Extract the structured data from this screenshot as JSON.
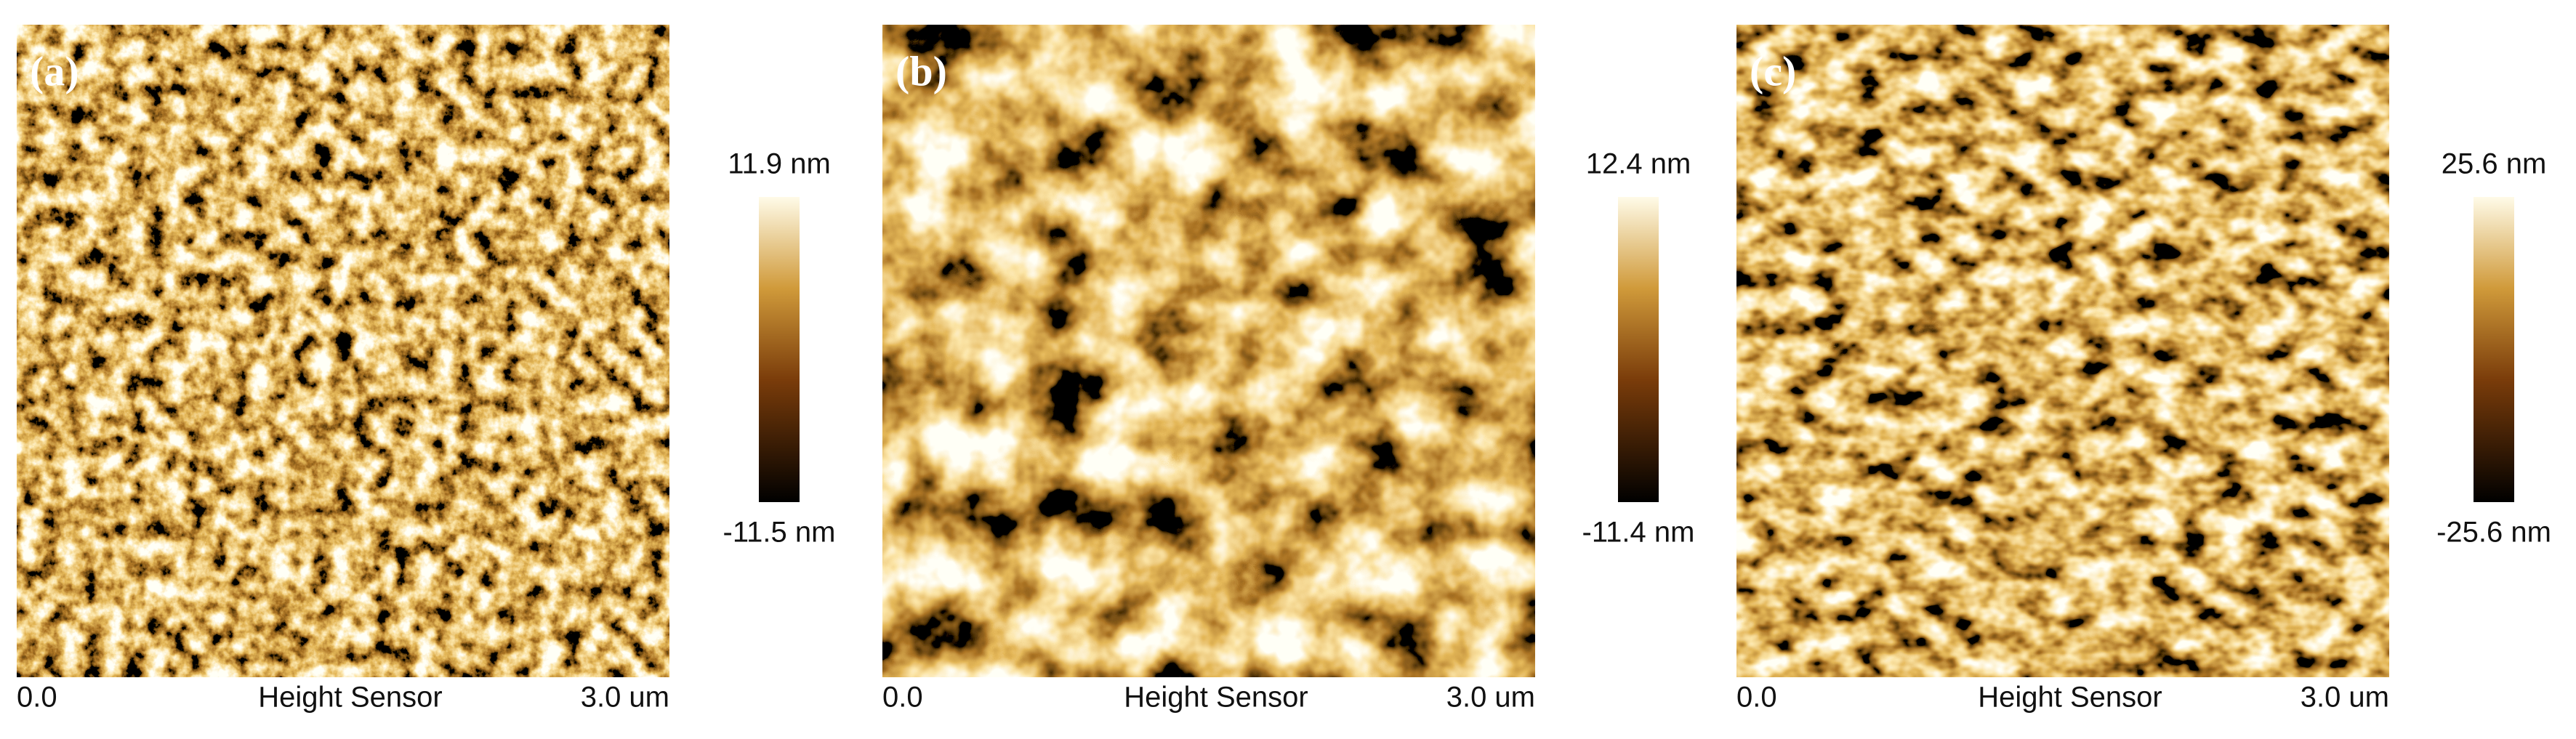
{
  "panels": [
    {
      "label": "(a)",
      "scale_max": "11.9 nm",
      "scale_min": "-11.5 nm",
      "x_start": "0.0",
      "x_title": "Height Sensor",
      "x_end": "3.0 um"
    },
    {
      "label": "(b)",
      "scale_max": "12.4 nm",
      "scale_min": "-11.4 nm",
      "x_start": "0.0",
      "x_title": "Height Sensor",
      "x_end": "3.0 um"
    },
    {
      "label": "(c)",
      "scale_max": "25.6 nm",
      "scale_min": "-25.6 nm",
      "x_start": "0.0",
      "x_title": "Height Sensor",
      "x_end": "3.0 um"
    }
  ]
}
